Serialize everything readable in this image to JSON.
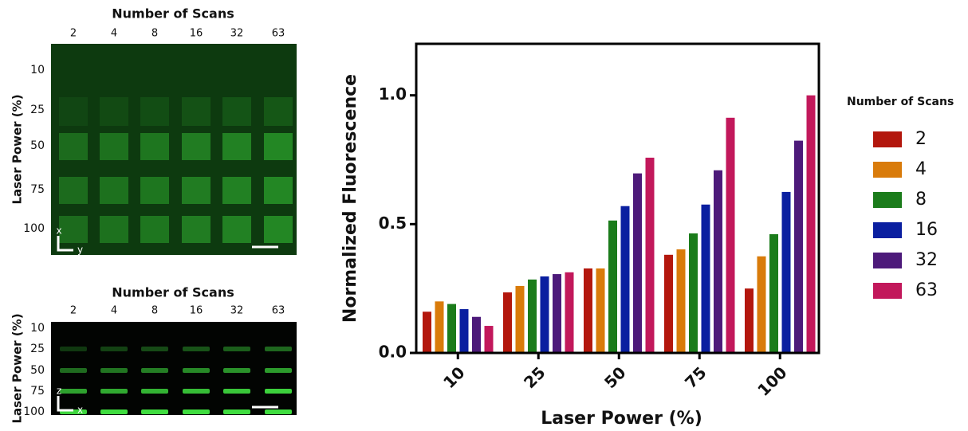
{
  "image_panels": [
    {
      "title": "Number of Scans",
      "columns": [
        "2",
        "4",
        "8",
        "16",
        "32",
        "63"
      ],
      "rows": [
        "10",
        "25",
        "50",
        "75",
        "100"
      ],
      "y_label": "Laser Power (%)",
      "axis_labels": [
        "x",
        "y"
      ]
    },
    {
      "title": "Number of Scans",
      "columns": [
        "2",
        "4",
        "8",
        "16",
        "32",
        "63"
      ],
      "rows": [
        "10",
        "25",
        "50",
        "75",
        "100"
      ],
      "y_label": "Laser Power (%)",
      "axis_labels": [
        "z",
        "x"
      ]
    }
  ],
  "chart_data": {
    "type": "bar",
    "x_label": "Laser Power (%)",
    "y_label": "Normalized Fluorescence",
    "legend_title": "Number of Scans",
    "categories": [
      "10",
      "25",
      "50",
      "75",
      "100"
    ],
    "series": [
      {
        "name": "2",
        "color": "#b3170d",
        "values": [
          0.16,
          0.235,
          0.328,
          0.381,
          0.25
        ]
      },
      {
        "name": "4",
        "color": "#d97b0a",
        "values": [
          0.2,
          0.26,
          0.328,
          0.402,
          0.375
        ]
      },
      {
        "name": "8",
        "color": "#1b7c1b",
        "values": [
          0.19,
          0.285,
          0.514,
          0.464,
          0.461
        ]
      },
      {
        "name": "16",
        "color": "#0a1fa0",
        "values": [
          0.17,
          0.297,
          0.57,
          0.576,
          0.625
        ]
      },
      {
        "name": "32",
        "color": "#4d1a7a",
        "values": [
          0.14,
          0.306,
          0.697,
          0.709,
          0.824
        ]
      },
      {
        "name": "63",
        "color": "#c2185b",
        "values": [
          0.105,
          0.313,
          0.758,
          0.913,
          1.0
        ]
      }
    ],
    "ylim": [
      0,
      1.2
    ],
    "yticks": [
      {
        "value": 0,
        "label": "0.0"
      },
      {
        "value": 0.5,
        "label": "0.5"
      },
      {
        "value": 1,
        "label": "1.0"
      }
    ],
    "grid": false,
    "legend": "right"
  }
}
